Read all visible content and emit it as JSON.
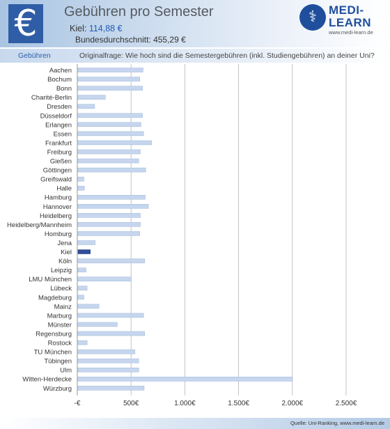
{
  "header": {
    "euro_symbol": "€",
    "title": "Gebühren pro Semester",
    "kiel_label": "Kiel:",
    "kiel_value": "114,88 €",
    "avg_label": "Bundesdurchschnitt:",
    "avg_value": "455,29 €"
  },
  "logo": {
    "line1": "MEDI-",
    "line2": "LEARN",
    "url": "www.medi-learn.de",
    "icon_glyph": "⚕"
  },
  "subheader": {
    "category": "Gebühren",
    "question": "Originalfrage: Wie hoch sind die Semestergebühren (inkl. Studiengebühren) an deiner Uni?"
  },
  "footer": {
    "source": "Quelle: Uni-Ranking, www.medi-learn.de"
  },
  "colors": {
    "bar": "#c6d6ee",
    "bar_highlight": "#2f4d9b",
    "grid": "#b5b5b5",
    "brand": "#1f4f9c"
  },
  "chart_data": {
    "type": "bar",
    "orientation": "horizontal",
    "categories": [
      "Aachen",
      "Bochum",
      "Bonn",
      "Charité-Berlin",
      "Dresden",
      "Düsseldorf",
      "Erlangen",
      "Essen",
      "Frankfurt",
      "Freiburg",
      "Gießen",
      "Göttingen",
      "Greifswald",
      "Halle",
      "Hamburg",
      "Hannover",
      "Heidelberg",
      "Heidelberg/Mannheim",
      "Homburg",
      "Jena",
      "Kiel",
      "Köln",
      "Leipzig",
      "LMU München",
      "Lübeck",
      "Magdeburg",
      "Mainz",
      "Marburg",
      "Münster",
      "Regensburg",
      "Rostock",
      "TU München",
      "Tübingen",
      "Ulm",
      "Witten-Herdecke",
      "Würzburg"
    ],
    "values": [
      605,
      575,
      600,
      255,
      155,
      600,
      585,
      610,
      685,
      580,
      565,
      630,
      55,
      60,
      625,
      655,
      580,
      580,
      575,
      160,
      115,
      620,
      75,
      495,
      85,
      55,
      195,
      610,
      365,
      620,
      85,
      530,
      565,
      565,
      1995,
      615
    ],
    "highlight": "Kiel",
    "xlim": [
      0,
      2500
    ],
    "xticks": [
      0,
      500,
      1000,
      1500,
      2000,
      2500
    ],
    "xtick_labels": [
      "-€",
      "500€",
      "1.000€",
      "1.500€",
      "2.000€",
      "2.500€"
    ],
    "grid": "vertical"
  }
}
